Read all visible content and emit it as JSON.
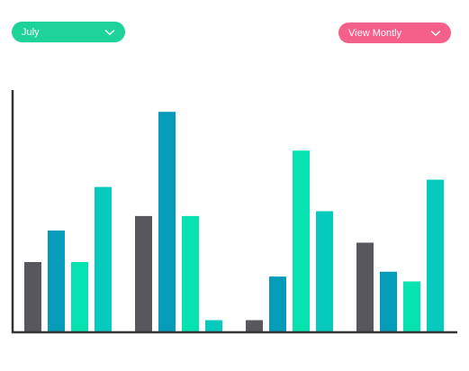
{
  "controls": {
    "month_select": {
      "value": "July",
      "icon": "chevron-down-icon",
      "color": "#1dd39a"
    },
    "view_select": {
      "value": "View Montly",
      "icon": "chevron-down-icon",
      "color": "#f5608a"
    }
  },
  "chart_data": {
    "type": "bar",
    "title": "",
    "xlabel": "",
    "ylabel": "",
    "categories": [
      "",
      "",
      "",
      ""
    ],
    "ylim": [
      0,
      100
    ],
    "grid": false,
    "legend": "none",
    "series": [
      {
        "color": "#58575d",
        "values": [
          29,
          48,
          5,
          37
        ]
      },
      {
        "color": "#069bb8",
        "values": [
          42,
          91,
          23,
          25
        ]
      },
      {
        "color": "#06e3b0",
        "values": [
          29,
          48,
          75,
          21
        ]
      },
      {
        "color": "#07cabf",
        "values": [
          60,
          5,
          50,
          63
        ]
      }
    ],
    "axis_color": "#333333"
  }
}
